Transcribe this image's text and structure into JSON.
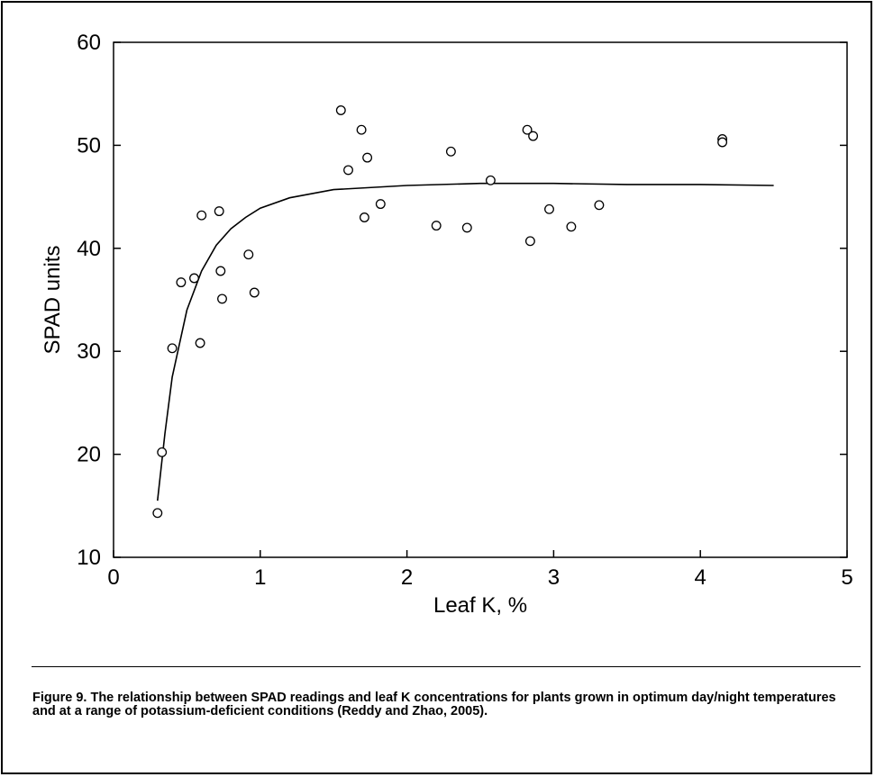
{
  "chart_data": {
    "type": "scatter",
    "xlabel": "Leaf K, %",
    "ylabel": "SPAD units",
    "xlim": [
      0,
      5
    ],
    "ylim": [
      10,
      60
    ],
    "x_ticks": [
      "0",
      "1",
      "2",
      "3",
      "4",
      "5"
    ],
    "y_ticks": [
      "10",
      "20",
      "30",
      "40",
      "50",
      "60"
    ],
    "grid": false,
    "series": [
      {
        "type": "scatter",
        "marker": "open-circle",
        "points": [
          [
            0.3,
            14.3
          ],
          [
            0.33,
            20.2
          ],
          [
            0.4,
            30.3
          ],
          [
            0.46,
            36.7
          ],
          [
            0.55,
            37.1
          ],
          [
            0.59,
            30.8
          ],
          [
            0.6,
            43.2
          ],
          [
            0.72,
            43.6
          ],
          [
            0.73,
            37.8
          ],
          [
            0.74,
            35.1
          ],
          [
            0.92,
            39.4
          ],
          [
            0.96,
            35.7
          ],
          [
            1.55,
            53.4
          ],
          [
            1.6,
            47.6
          ],
          [
            1.69,
            51.5
          ],
          [
            1.71,
            43.0
          ],
          [
            1.73,
            48.8
          ],
          [
            1.82,
            44.3
          ],
          [
            2.2,
            42.2
          ],
          [
            2.3,
            49.4
          ],
          [
            2.41,
            42.0
          ],
          [
            2.57,
            46.6
          ],
          [
            2.82,
            51.5
          ],
          [
            2.84,
            40.7
          ],
          [
            2.86,
            50.9
          ],
          [
            2.97,
            43.8
          ],
          [
            3.12,
            42.1
          ],
          [
            3.31,
            44.2
          ],
          [
            4.15,
            50.6
          ],
          [
            4.15,
            50.3
          ]
        ]
      },
      {
        "type": "line",
        "points": [
          [
            0.3,
            15.5
          ],
          [
            0.35,
            22.0
          ],
          [
            0.4,
            27.5
          ],
          [
            0.5,
            34.0
          ],
          [
            0.6,
            37.8
          ],
          [
            0.7,
            40.3
          ],
          [
            0.8,
            41.9
          ],
          [
            0.9,
            43.0
          ],
          [
            1.0,
            43.9
          ],
          [
            1.2,
            44.9
          ],
          [
            1.5,
            45.7
          ],
          [
            2.0,
            46.1
          ],
          [
            2.5,
            46.3
          ],
          [
            3.0,
            46.3
          ],
          [
            3.5,
            46.2
          ],
          [
            4.0,
            46.2
          ],
          [
            4.5,
            46.1
          ]
        ]
      }
    ]
  },
  "caption": "Figure 9. The relationship between SPAD readings and leaf K concentrations for plants grown in optimum day/night temperatures and at a range of potassium-deficient conditions (Reddy and Zhao, 2005)."
}
